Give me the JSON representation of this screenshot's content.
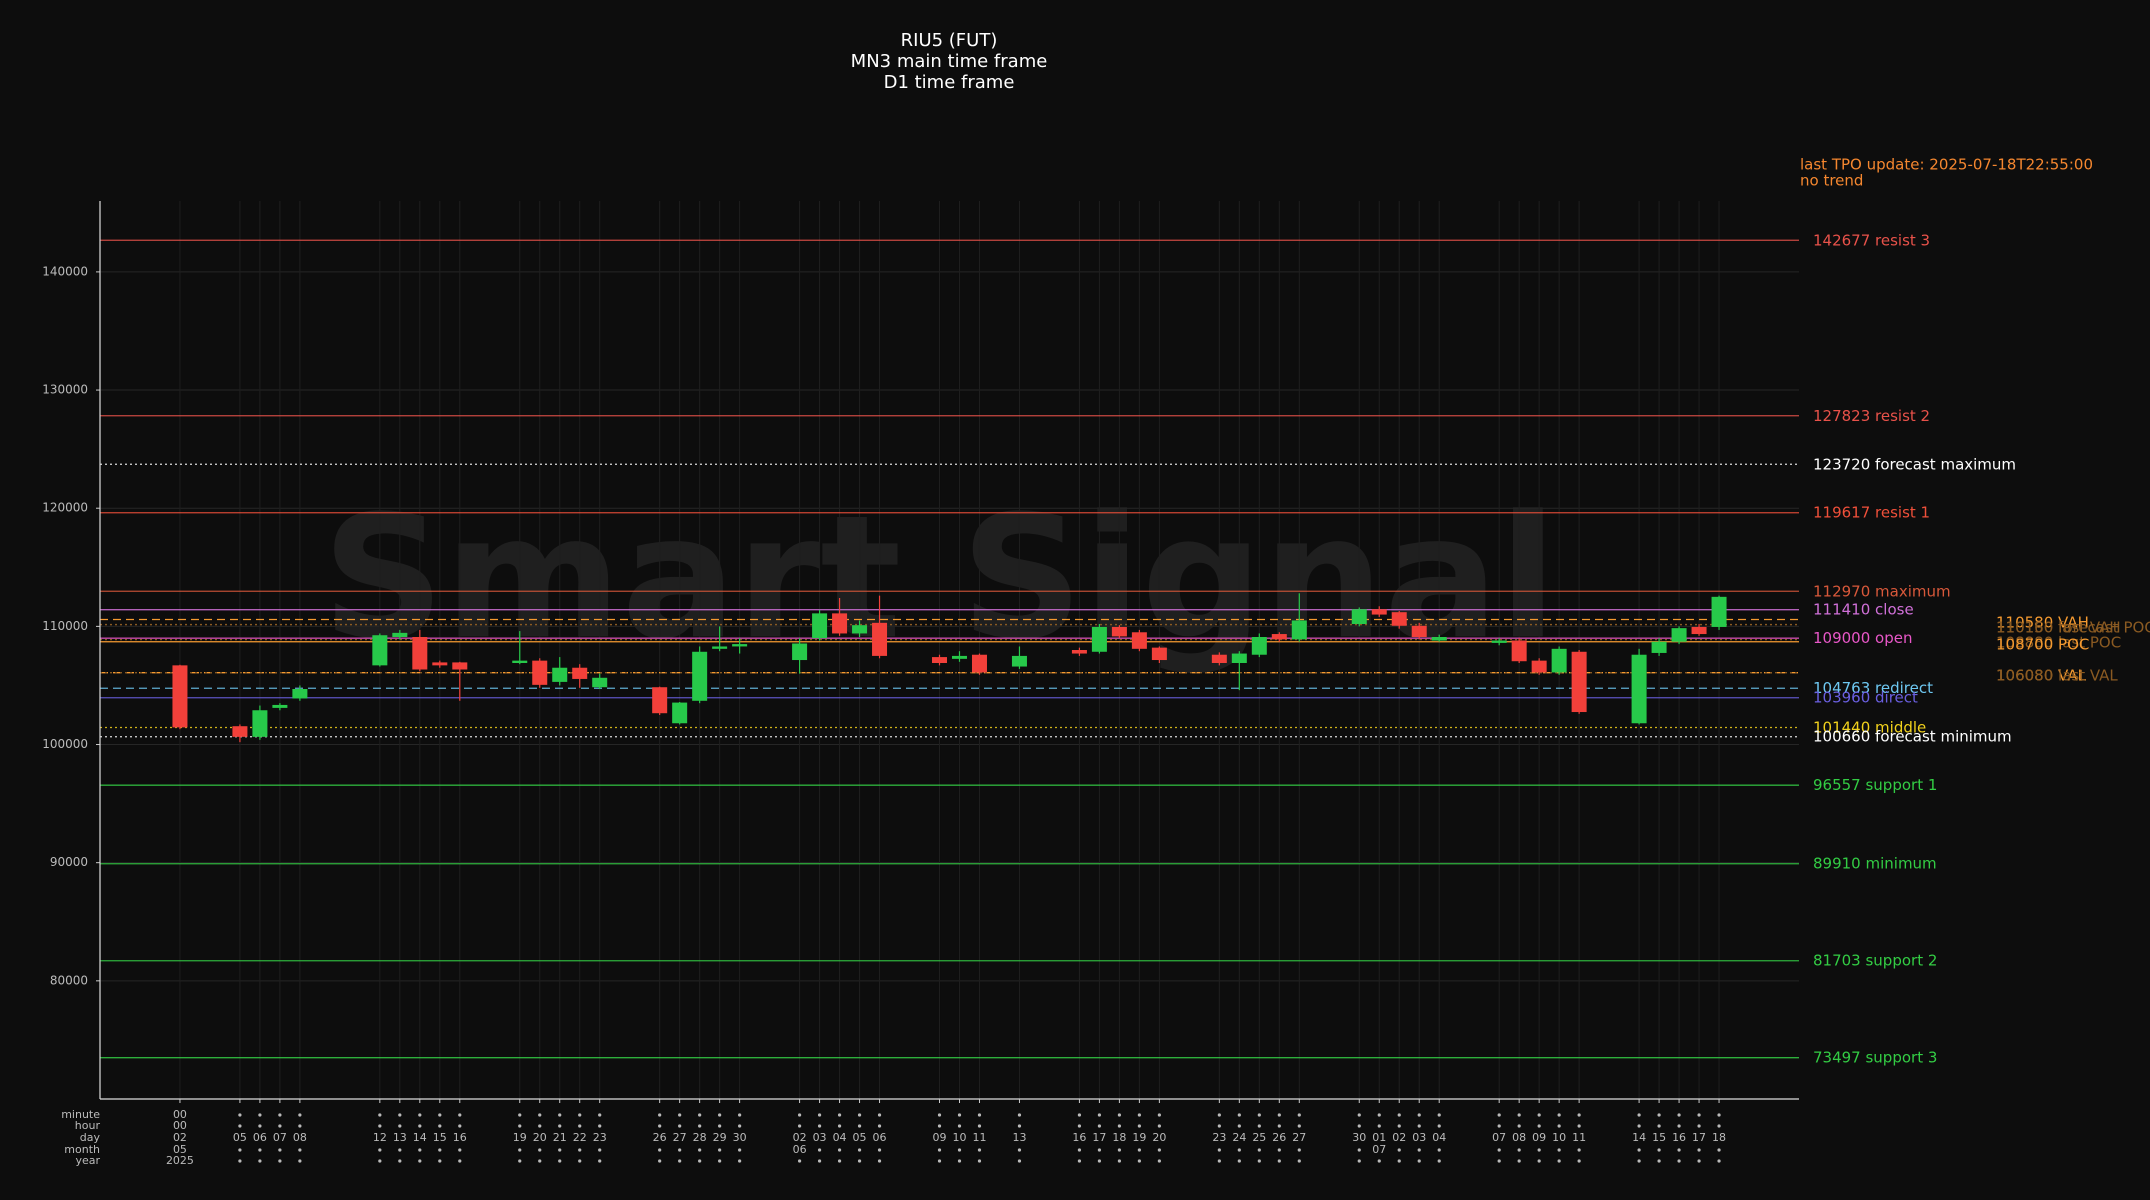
{
  "chart_data": {
    "type": "candlestick",
    "title": [
      "RIU5 (FUT)",
      "MN3 main time frame",
      "D1 time frame"
    ],
    "watermark": "Smart Signal",
    "note": [
      "last TPO update: 2025-07-18T22:55:00",
      "no trend"
    ],
    "note_color": "#f5872f",
    "up_color": "#27c94a",
    "down_color": "#f2403a",
    "grid": true,
    "xlim": [
      "2025-04-28",
      "2025-07-22"
    ],
    "ylim": [
      70000,
      146000
    ],
    "yticks": [
      80000,
      90000,
      100000,
      110000,
      120000,
      130000,
      140000
    ],
    "x_rows": [
      "minute",
      "hour",
      "day",
      "month",
      "year"
    ],
    "x": [
      "2025-05-02",
      "2025-05-05",
      "2025-05-06",
      "2025-05-07",
      "2025-05-08",
      "2025-05-12",
      "2025-05-13",
      "2025-05-14",
      "2025-05-15",
      "2025-05-16",
      "2025-05-19",
      "2025-05-20",
      "2025-05-21",
      "2025-05-22",
      "2025-05-23",
      "2025-05-26",
      "2025-05-27",
      "2025-05-28",
      "2025-05-29",
      "2025-05-30",
      "2025-06-02",
      "2025-06-03",
      "2025-06-04",
      "2025-06-05",
      "2025-06-06",
      "2025-06-09",
      "2025-06-10",
      "2025-06-11",
      "2025-06-13",
      "2025-06-16",
      "2025-06-17",
      "2025-06-18",
      "2025-06-19",
      "2025-06-20",
      "2025-06-23",
      "2025-06-24",
      "2025-06-25",
      "2025-06-26",
      "2025-06-27",
      "2025-06-30",
      "2025-07-01",
      "2025-07-02",
      "2025-07-03",
      "2025-07-04",
      "2025-07-07",
      "2025-07-08",
      "2025-07-09",
      "2025-07-10",
      "2025-07-11",
      "2025-07-14",
      "2025-07-15",
      "2025-07-16",
      "2025-07-17",
      "2025-07-18"
    ],
    "xtick_labels": [
      [
        "00",
        "00",
        "02",
        "05",
        "2025"
      ],
      [
        null,
        null,
        "05",
        null,
        null
      ],
      [
        null,
        null,
        "06",
        null,
        null
      ],
      [
        null,
        null,
        "07",
        null,
        null
      ],
      [
        null,
        null,
        "08",
        null,
        null
      ],
      [
        null,
        null,
        "12",
        null,
        null
      ],
      [
        null,
        null,
        "13",
        null,
        null
      ],
      [
        null,
        null,
        "14",
        null,
        null
      ],
      [
        null,
        null,
        "15",
        null,
        null
      ],
      [
        null,
        null,
        "16",
        null,
        null
      ],
      [
        null,
        null,
        "19",
        null,
        null
      ],
      [
        null,
        null,
        "20",
        null,
        null
      ],
      [
        null,
        null,
        "21",
        null,
        null
      ],
      [
        null,
        null,
        "22",
        null,
        null
      ],
      [
        null,
        null,
        "23",
        null,
        null
      ],
      [
        null,
        null,
        "26",
        null,
        null
      ],
      [
        null,
        null,
        "27",
        null,
        null
      ],
      [
        null,
        null,
        "28",
        null,
        null
      ],
      [
        null,
        null,
        "29",
        null,
        null
      ],
      [
        null,
        null,
        "30",
        null,
        null
      ],
      [
        null,
        null,
        "02",
        "06",
        null
      ],
      [
        null,
        null,
        "03",
        null,
        null
      ],
      [
        null,
        null,
        "04",
        null,
        null
      ],
      [
        null,
        null,
        "05",
        null,
        null
      ],
      [
        null,
        null,
        "06",
        null,
        null
      ],
      [
        null,
        null,
        "09",
        null,
        null
      ],
      [
        null,
        null,
        "10",
        null,
        null
      ],
      [
        null,
        null,
        "11",
        null,
        null
      ],
      [
        null,
        null,
        "13",
        null,
        null
      ],
      [
        null,
        null,
        "16",
        null,
        null
      ],
      [
        null,
        null,
        "17",
        null,
        null
      ],
      [
        null,
        null,
        "18",
        null,
        null
      ],
      [
        null,
        null,
        "19",
        null,
        null
      ],
      [
        null,
        null,
        "20",
        null,
        null
      ],
      [
        null,
        null,
        "23",
        null,
        null
      ],
      [
        null,
        null,
        "24",
        null,
        null
      ],
      [
        null,
        null,
        "25",
        null,
        null
      ],
      [
        null,
        null,
        "26",
        null,
        null
      ],
      [
        null,
        null,
        "27",
        null,
        null
      ],
      [
        null,
        null,
        "30",
        null,
        null
      ],
      [
        null,
        null,
        "01",
        "07",
        null
      ],
      [
        null,
        null,
        "02",
        null,
        null
      ],
      [
        null,
        null,
        "03",
        null,
        null
      ],
      [
        null,
        null,
        "04",
        null,
        null
      ],
      [
        null,
        null,
        "07",
        null,
        null
      ],
      [
        null,
        null,
        "08",
        null,
        null
      ],
      [
        null,
        null,
        "09",
        null,
        null
      ],
      [
        null,
        null,
        "10",
        null,
        null
      ],
      [
        null,
        null,
        "11",
        null,
        null
      ],
      [
        null,
        null,
        "14",
        null,
        null
      ],
      [
        null,
        null,
        "15",
        null,
        null
      ],
      [
        null,
        null,
        "16",
        null,
        null
      ],
      [
        null,
        null,
        "17",
        null,
        null
      ],
      [
        null,
        null,
        "18",
        null,
        null
      ]
    ],
    "open": [
      106700,
      101550,
      100650,
      103100,
      103900,
      106700,
      109100,
      109100,
      106950,
      106950,
      106900,
      107100,
      105300,
      106500,
      104850,
      104850,
      101800,
      103700,
      108100,
      108300,
      107150,
      109000,
      111100,
      109400,
      110300,
      107400,
      107250,
      107600,
      106600,
      108000,
      107850,
      109950,
      109500,
      108200,
      107600,
      106900,
      107600,
      109350,
      108900,
      110200,
      111450,
      111200,
      110050,
      108800,
      108600,
      108800,
      107100,
      106100,
      107850,
      101800,
      107750,
      108700,
      109950,
      109950
    ],
    "high": [
      106750,
      101700,
      103300,
      103500,
      105000,
      109400,
      109700,
      109700,
      107100,
      107000,
      109600,
      107300,
      107400,
      106800,
      106000,
      104900,
      103600,
      108300,
      110000,
      109000,
      109000,
      111400,
      112400,
      110500,
      112600,
      107600,
      107900,
      107700,
      108300,
      108200,
      110200,
      110100,
      109700,
      108300,
      107800,
      107900,
      109400,
      109500,
      112800,
      111600,
      111700,
      111300,
      110300,
      109300,
      109000,
      109000,
      107300,
      108300,
      108000,
      108100,
      109000,
      110000,
      110200,
      112600
    ],
    "low": [
      101300,
      100200,
      100400,
      102900,
      103700,
      106600,
      108900,
      106200,
      106500,
      103700,
      106800,
      104800,
      105000,
      104800,
      104700,
      102500,
      101700,
      103500,
      107900,
      107700,
      106000,
      108800,
      109200,
      109100,
      107300,
      106700,
      107000,
      105900,
      106400,
      107500,
      107700,
      109000,
      107900,
      106900,
      106700,
      104600,
      107400,
      108700,
      108700,
      110000,
      110800,
      109800,
      108900,
      108700,
      108400,
      106900,
      105900,
      105900,
      102600,
      101700,
      107500,
      108500,
      109200,
      109700
    ],
    "close": [
      101450,
      100650,
      102900,
      103350,
      104700,
      109250,
      109450,
      106350,
      106700,
      106350,
      107100,
      105050,
      106500,
      105550,
      105650,
      102650,
      103550,
      107850,
      108300,
      108500,
      108550,
      111100,
      109400,
      110100,
      107500,
      106900,
      107500,
      106100,
      107500,
      107700,
      109950,
      109150,
      108100,
      107150,
      106900,
      107700,
      109100,
      108900,
      110500,
      111450,
      111000,
      110050,
      109100,
      109100,
      108800,
      107050,
      106100,
      108100,
      102750,
      107600,
      108700,
      109850,
      109350,
      112500
    ],
    "levels": [
      {
        "value": 142677,
        "name": "resist 3",
        "color": "#e8524a",
        "style": "solid"
      },
      {
        "value": 127823,
        "name": "resist 2",
        "color": "#e8524a",
        "style": "solid"
      },
      {
        "value": 123720,
        "name": "forecast maximum",
        "color": "#ffffff",
        "style": "dotted"
      },
      {
        "value": 119617,
        "name": "resist 1",
        "color": "#f0503a",
        "style": "solid"
      },
      {
        "value": 112970,
        "name": "maximum",
        "color": "#d8583a",
        "style": "solid"
      },
      {
        "value": 111410,
        "name": "close",
        "color": "#d070d8",
        "style": "solid"
      },
      {
        "value": 109000,
        "name": "open",
        "color": "#e857c8",
        "style": "solid"
      },
      {
        "value": 104763,
        "name": "redirect",
        "color": "#6ec8f2",
        "style": "dashed"
      },
      {
        "value": 103960,
        "name": "direct",
        "color": "#6a5fe0",
        "style": "solid"
      },
      {
        "value": 101440,
        "name": "middle",
        "color": "#f2d21c",
        "style": "dotted"
      },
      {
        "value": 100660,
        "name": "forecast minimum",
        "color": "#ffffff",
        "style": "dotted"
      },
      {
        "value": 96557,
        "name": "support 1",
        "color": "#33cc44",
        "style": "solid"
      },
      {
        "value": 89910,
        "name": "minimum",
        "color": "#33cc44",
        "style": "solid"
      },
      {
        "value": 81703,
        "name": "support 2",
        "color": "#33cc44",
        "style": "solid"
      },
      {
        "value": 73497,
        "name": "support 3",
        "color": "#33cc44",
        "style": "solid"
      }
    ],
    "tpo_levels": [
      {
        "value": 110580,
        "name": "VAH",
        "color": "#f59a30",
        "style": "dashed"
      },
      {
        "value": 110160,
        "name": "last VAH",
        "color": "#8a5a22",
        "style": "dotted"
      },
      {
        "value": 110150,
        "name": "forecast POC",
        "color": "#8a5a22",
        "style": "dotted"
      },
      {
        "value": 108880,
        "name": "last POC",
        "color": "#8a5a22",
        "style": "dotted"
      },
      {
        "value": 108700,
        "name": "POC",
        "color": "#f59a30",
        "style": "solid"
      },
      {
        "value": 106080,
        "name": "VAL",
        "color": "#f59a30",
        "style": "dashed"
      },
      {
        "value": 106080,
        "name": "last VAL",
        "color": "#8a5a22",
        "style": "dotted"
      }
    ]
  }
}
